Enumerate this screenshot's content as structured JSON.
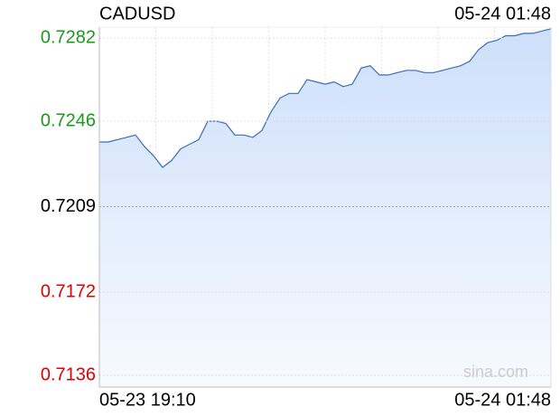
{
  "chart_data": {
    "type": "area",
    "title": "CADUSD",
    "timestamp": "05-24 01:48",
    "values": [
      0.7237,
      0.7237,
      0.7238,
      0.7239,
      0.724,
      0.7235,
      0.7231,
      0.7226,
      0.7229,
      0.7234,
      0.7236,
      0.7238,
      0.7246,
      0.7246,
      0.7245,
      0.724,
      0.724,
      0.7239,
      0.7242,
      0.725,
      0.7256,
      0.7258,
      0.7258,
      0.7264,
      0.7263,
      0.7262,
      0.7263,
      0.7261,
      0.7262,
      0.7269,
      0.727,
      0.7266,
      0.7266,
      0.7267,
      0.7268,
      0.7268,
      0.7267,
      0.7267,
      0.7268,
      0.7269,
      0.727,
      0.7272,
      0.7277,
      0.728,
      0.7281,
      0.7283,
      0.7283,
      0.7284,
      0.7284,
      0.7285,
      0.7286
    ],
    "color": "#3a6db5",
    "x_labels": [
      "05-23 19:10",
      "05-24 01:48"
    ],
    "ylim": [
      0.71309,
      0.72867
    ],
    "yticks": [
      0.7282,
      0.7246,
      0.7209,
      0.7172,
      0.7136
    ],
    "ytick_colors": [
      "#1a9a1a",
      "#1a9a1a",
      "#000000",
      "#e00000",
      "#e00000"
    ],
    "grid": true,
    "watermark": "sina.com"
  }
}
